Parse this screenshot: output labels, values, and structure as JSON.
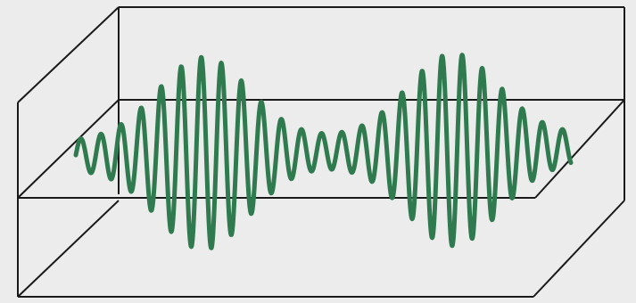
{
  "figure": {
    "wave_color": "#2f7a4e",
    "frame_color": "#1a1a1a",
    "background": "#ececec"
  }
}
